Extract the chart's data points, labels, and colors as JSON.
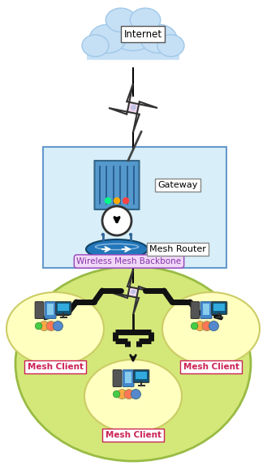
{
  "bg_color": "#ffffff",
  "internet_label": "Internet",
  "gateway_label": "Gateway",
  "mesh_router_label": "Mesh Router",
  "backbone_label": "Wireless Mesh Backbone",
  "mesh_client_label": "Mesh Client",
  "cloud_color": "#c5dff5",
  "cloud_edge": "#a0c8e8",
  "gateway_box_color": "#d8eef8",
  "gateway_box_edge": "#6699cc",
  "green_color": "#d4e87a",
  "green_edge": "#99bb44",
  "yellow_color": "#ffffc0",
  "yellow_edge": "#cccc66",
  "star_color": "#f0d8f0",
  "star_edge": "#333333",
  "label_box_edge": "#888888",
  "backbone_text_color": "#8833aa",
  "backbone_box_color": "#f0d8f8",
  "backbone_box_edge": "#9944bb",
  "mesh_client_text_color": "#cc2255",
  "mesh_client_box_color": "#ffffff",
  "mesh_client_box_edge": "#cc2255",
  "figsize": [
    3.29,
    5.79
  ],
  "dpi": 100
}
